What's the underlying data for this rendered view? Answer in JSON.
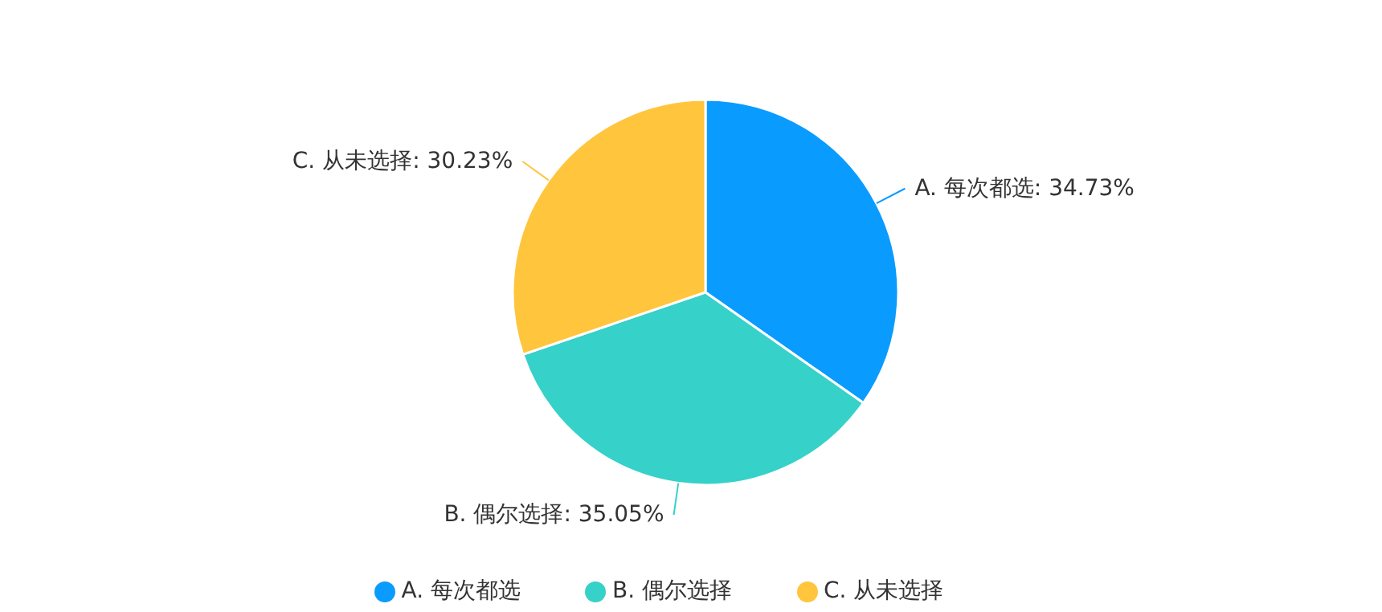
{
  "chart_data": {
    "type": "pie",
    "categories": [
      "A. 每次都选",
      "B. 偶尔选择",
      "C. 从未选择"
    ],
    "values": [
      34.73,
      35.05,
      30.23
    ],
    "value_labels": [
      "A. 每次都选: 34.73%",
      "B. 偶尔选择: 35.05%",
      "C. 从未选择: 30.23%"
    ],
    "colors": [
      "#0a9bff",
      "#36d1c9",
      "#ffc53d"
    ],
    "legend": "bottom"
  }
}
